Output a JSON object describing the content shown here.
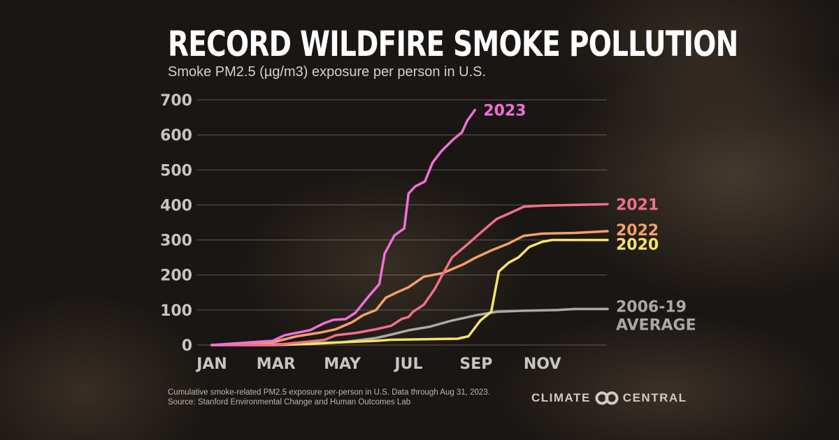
{
  "title": "RECORD WILDFIRE SMOKE POLLUTION",
  "subtitle": "Smoke PM2.5 (µg/m3) exposure per person in U.S.",
  "footnote": "Cumulative smoke-related PM2.5 exposure per-person in U.S. Data through Aug 31, 2023.",
  "source": "Source: Stanford Environmental Change and Human Outcomes Lab",
  "logo": {
    "left": "CLIMATE",
    "right": "CENTRAL"
  },
  "chart_data": {
    "type": "line",
    "title": "RECORD WILDFIRE SMOKE POLLUTION",
    "ylabel": "Smoke PM2.5 (µg/m3) exposure per person in U.S.",
    "ylim": [
      0,
      700
    ],
    "yticks": [
      0,
      100,
      200,
      300,
      400,
      500,
      600,
      700
    ],
    "xticks": [
      {
        "date": "01-01",
        "label": "JAN"
      },
      {
        "date": "03-01",
        "label": "MAR"
      },
      {
        "date": "05-01",
        "label": "MAY"
      },
      {
        "date": "07-01",
        "label": "JUL"
      },
      {
        "date": "09-01",
        "label": "SEP"
      },
      {
        "date": "11-01",
        "label": "NOV"
      }
    ],
    "xlim": [
      "01-01",
      "12-31"
    ],
    "grid": true,
    "series": [
      {
        "name": "2006-19 AVERAGE",
        "color": "#a9a9a9",
        "points": [
          [
            "01-01",
            0
          ],
          [
            "03-01",
            2
          ],
          [
            "04-01",
            5
          ],
          [
            "05-01",
            8
          ],
          [
            "06-01",
            20
          ],
          [
            "06-15",
            30
          ],
          [
            "07-01",
            42
          ],
          [
            "07-20",
            52
          ],
          [
            "08-10",
            70
          ],
          [
            "09-01",
            85
          ],
          [
            "09-20",
            95
          ],
          [
            "10-15",
            98
          ],
          [
            "11-15",
            100
          ],
          [
            "12-01",
            103
          ],
          [
            "12-31",
            103
          ]
        ]
      },
      {
        "name": "2020",
        "color": "#f6e36a",
        "points": [
          [
            "01-01",
            0
          ],
          [
            "03-01",
            0
          ],
          [
            "04-01",
            3
          ],
          [
            "05-01",
            8
          ],
          [
            "06-01",
            12
          ],
          [
            "06-15",
            15
          ],
          [
            "08-15",
            18
          ],
          [
            "08-25",
            25
          ],
          [
            "09-05",
            70
          ],
          [
            "09-15",
            95
          ],
          [
            "09-22",
            210
          ],
          [
            "10-01",
            235
          ],
          [
            "10-10",
            250
          ],
          [
            "10-20",
            280
          ],
          [
            "11-01",
            295
          ],
          [
            "11-10",
            300
          ],
          [
            "12-31",
            300
          ]
        ]
      },
      {
        "name": "2022",
        "color": "#f4a06a",
        "points": [
          [
            "01-01",
            0
          ],
          [
            "02-15",
            3
          ],
          [
            "03-01",
            10
          ],
          [
            "03-20",
            25
          ],
          [
            "04-10",
            35
          ],
          [
            "04-25",
            45
          ],
          [
            "05-10",
            65
          ],
          [
            "05-20",
            85
          ],
          [
            "06-01",
            100
          ],
          [
            "06-10",
            135
          ],
          [
            "06-20",
            150
          ],
          [
            "07-01",
            165
          ],
          [
            "07-15",
            195
          ],
          [
            "08-01",
            205
          ],
          [
            "08-20",
            230
          ],
          [
            "09-01",
            250
          ],
          [
            "09-15",
            270
          ],
          [
            "10-01",
            290
          ],
          [
            "10-15",
            312
          ],
          [
            "11-01",
            318
          ],
          [
            "12-01",
            320
          ],
          [
            "12-31",
            325
          ]
        ]
      },
      {
        "name": "2021",
        "color": "#f0708a",
        "points": [
          [
            "01-01",
            0
          ],
          [
            "03-01",
            0
          ],
          [
            "03-15",
            5
          ],
          [
            "04-01",
            10
          ],
          [
            "04-15",
            15
          ],
          [
            "04-25",
            28
          ],
          [
            "05-15",
            35
          ],
          [
            "06-01",
            45
          ],
          [
            "06-15",
            55
          ],
          [
            "06-25",
            75
          ],
          [
            "07-01",
            80
          ],
          [
            "07-05",
            95
          ],
          [
            "07-15",
            115
          ],
          [
            "07-25",
            160
          ],
          [
            "08-01",
            200
          ],
          [
            "08-10",
            250
          ],
          [
            "08-25",
            290
          ],
          [
            "09-05",
            320
          ],
          [
            "09-20",
            360
          ],
          [
            "10-01",
            375
          ],
          [
            "10-15",
            395
          ],
          [
            "11-01",
            398
          ],
          [
            "12-01",
            400
          ],
          [
            "12-31",
            402
          ]
        ]
      },
      {
        "name": "2023",
        "color": "#f070d8",
        "points": [
          [
            "01-01",
            0
          ],
          [
            "02-26",
            12
          ],
          [
            "03-09",
            28
          ],
          [
            "04-01",
            42
          ],
          [
            "04-14",
            62
          ],
          [
            "04-23",
            72
          ],
          [
            "05-04",
            74
          ],
          [
            "05-13",
            92
          ],
          [
            "05-26",
            142
          ],
          [
            "06-04",
            174
          ],
          [
            "06-09",
            261
          ],
          [
            "06-18",
            313
          ],
          [
            "06-27",
            333
          ],
          [
            "07-01",
            433
          ],
          [
            "07-07",
            453
          ],
          [
            "07-16",
            467
          ],
          [
            "07-23",
            521
          ],
          [
            "07-31",
            553
          ],
          [
            "08-11",
            587
          ],
          [
            "08-19",
            607
          ],
          [
            "08-24",
            641
          ],
          [
            "08-31",
            671
          ]
        ]
      }
    ]
  }
}
